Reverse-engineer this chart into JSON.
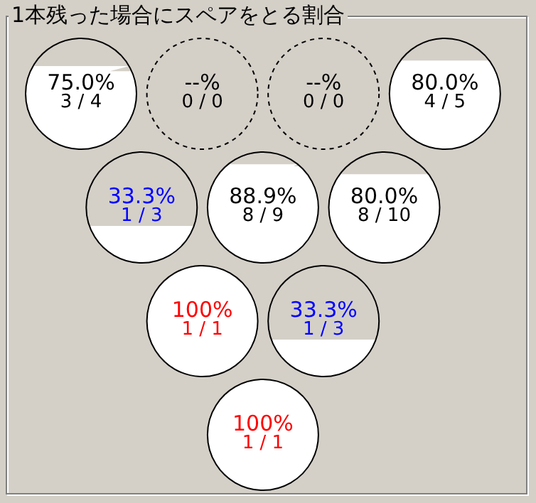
{
  "chart_data": {
    "type": "other",
    "title": "1本残った場合にスペアをとる割合",
    "categories": [
      null,
      null,
      null,
      null,
      null,
      null,
      null,
      null,
      null,
      null
    ],
    "values": [
      75.0,
      null,
      null,
      80.0,
      33.3,
      88.9,
      80.0,
      100,
      33.3,
      100
    ],
    "value_labels": [
      "75.0%\n3 / 4",
      "--%\n0 / 0",
      "--%\n0 / 0",
      "80.0%\n4 / 5",
      "33.3%\n1 / 3",
      "88.9%\n8 / 9",
      "80.0%\n8 / 10",
      "100%\n1 / 1",
      "33.3%\n1 / 3",
      "100%\n1 / 1"
    ],
    "colors": [
      "#000000",
      "#000000",
      "#000000",
      "#000000",
      "#0000ff",
      "#000000",
      "#000000",
      "#ff0000",
      "#0000ff",
      "#ff0000"
    ]
  }
}
